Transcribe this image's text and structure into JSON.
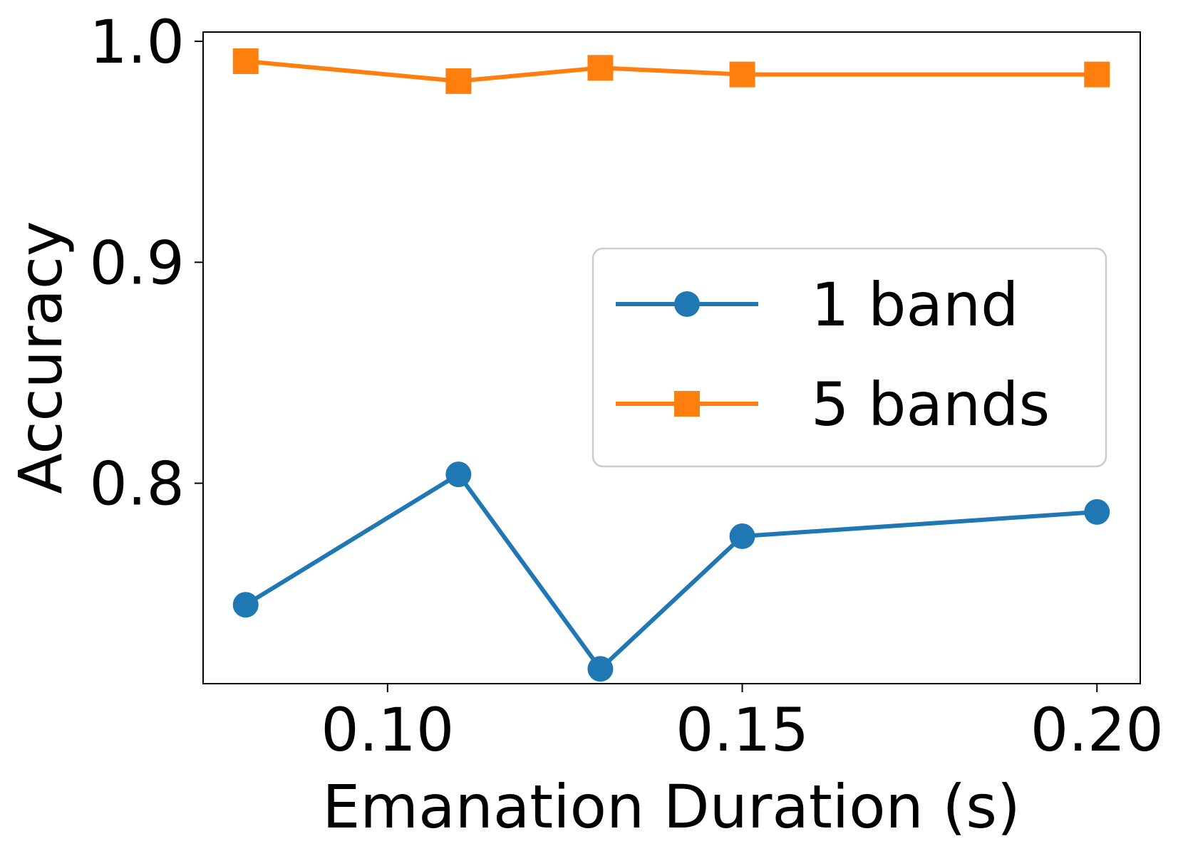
{
  "chart_data": {
    "type": "line",
    "title": "",
    "xlabel": "Emanation Duration (s)",
    "ylabel": "Accuracy",
    "xlim": [
      0.074,
      0.2061
    ],
    "ylim": [
      0.7093,
      1.0042
    ],
    "grid": false,
    "legend_position": "center-right",
    "x": [
      0.08,
      0.11,
      0.13,
      0.15,
      0.2
    ],
    "xticks": [
      0.1,
      0.15,
      0.2
    ],
    "xtick_labels": [
      "0.10",
      "0.15",
      "0.20"
    ],
    "yticks": [
      0.8,
      0.9,
      1.0
    ],
    "ytick_labels": [
      "0.8",
      "0.9",
      "1.0"
    ],
    "series": [
      {
        "name": "1 band",
        "marker": "circle",
        "color": "#1f77b4",
        "values": [
          0.745,
          0.804,
          0.716,
          0.776,
          0.787
        ]
      },
      {
        "name": "5 bands",
        "marker": "square",
        "color": "#ff7f0e",
        "values": [
          0.991,
          0.982,
          0.988,
          0.985,
          0.985
        ]
      }
    ]
  }
}
